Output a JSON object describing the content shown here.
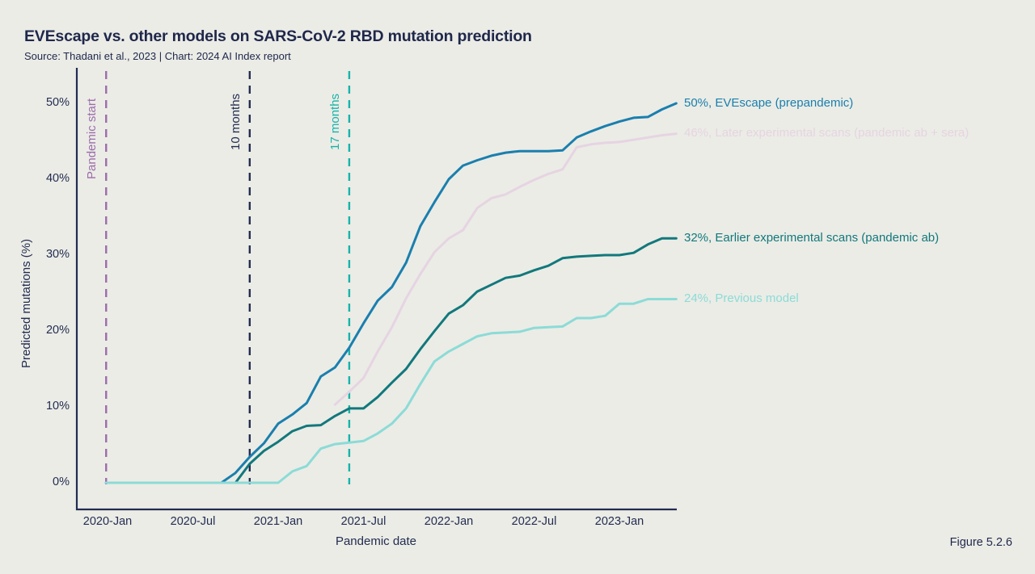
{
  "header": {
    "title": "EVEscape vs. other models on SARS-CoV-2 RBD mutation prediction",
    "subtitle": "Source: Thadani et al., 2023 | Chart: 2024 AI Index report"
  },
  "figure_label": "Figure 5.2.6",
  "chart_data": {
    "type": "line",
    "title": "EVEscape vs. other models on SARS-CoV-2 RBD mutation prediction",
    "xlabel": "Pandemic date",
    "ylabel": "Predicted mutations (%)",
    "x_unit": "months since 2020-Jan",
    "ylim": [
      0,
      50
    ],
    "grid": false,
    "legend_position": "line-end-labels-right",
    "axis_color": "#232c51",
    "background_color": "#ebece6",
    "y_ticks": [
      {
        "v": 0,
        "label": "0%"
      },
      {
        "v": 10,
        "label": "10%"
      },
      {
        "v": 20,
        "label": "20%"
      },
      {
        "v": 30,
        "label": "30%"
      },
      {
        "v": 40,
        "label": "40%"
      },
      {
        "v": 50,
        "label": "50%"
      }
    ],
    "x_ticks": [
      {
        "m": 0,
        "label": "2020-Jan"
      },
      {
        "m": 6,
        "label": "2020-Jul"
      },
      {
        "m": 12,
        "label": "2021-Jan"
      },
      {
        "m": 18,
        "label": "2021-Jul"
      },
      {
        "m": 24,
        "label": "2022-Jan"
      },
      {
        "m": 30,
        "label": "2022-Jul"
      },
      {
        "m": 36,
        "label": "2023-Jan"
      }
    ],
    "markers": [
      {
        "id": "pandemic-start",
        "label": "Pandemic start",
        "m": -0.1,
        "color": "#9c6cab",
        "label_height": 124
      },
      {
        "id": "10-months",
        "label": "10 months",
        "m": 10,
        "color": "#232c51",
        "label_height": 88
      },
      {
        "id": "17-months",
        "label": "17 months",
        "m": 17,
        "color": "#16b3aa",
        "label_height": 88
      }
    ],
    "series": [
      {
        "id": "evescape-prepandemic",
        "name": "EVEscape (prepandemic)",
        "end_label": "50%, EVEscape (prepandemic)",
        "color": "#1a7fae",
        "points": [
          [
            -0.1,
            0
          ],
          [
            8,
            0
          ],
          [
            9,
            1.3
          ],
          [
            10,
            3.4
          ],
          [
            11,
            5.2
          ],
          [
            12,
            7.8
          ],
          [
            13,
            9
          ],
          [
            14,
            10.5
          ],
          [
            15,
            14
          ],
          [
            16,
            15.2
          ],
          [
            17,
            17.8
          ],
          [
            18,
            21
          ],
          [
            19,
            24
          ],
          [
            20,
            25.8
          ],
          [
            21,
            29
          ],
          [
            22,
            33.8
          ],
          [
            23,
            37
          ],
          [
            24,
            40
          ],
          [
            25,
            41.8
          ],
          [
            26,
            42.5
          ],
          [
            27,
            43.1
          ],
          [
            28,
            43.5
          ],
          [
            29,
            43.7
          ],
          [
            31,
            43.7
          ],
          [
            32,
            43.8
          ],
          [
            33,
            45.5
          ],
          [
            34,
            46.3
          ],
          [
            35,
            47
          ],
          [
            36,
            47.6
          ],
          [
            37,
            48.1
          ],
          [
            38,
            48.2
          ],
          [
            39,
            49.2
          ],
          [
            40,
            50
          ]
        ]
      },
      {
        "id": "later-experimental-scans",
        "name": "Later experimental scans (pandemic ab + sera)",
        "end_label": "46%, Later experimental scans (pandemic ab + sera)",
        "color": "#e6d4e2",
        "points": [
          [
            16,
            10.3
          ],
          [
            17,
            12
          ],
          [
            18,
            13.8
          ],
          [
            19,
            17.3
          ],
          [
            20,
            20.5
          ],
          [
            21,
            24.3
          ],
          [
            22,
            27.5
          ],
          [
            23,
            30.4
          ],
          [
            24,
            32.2
          ],
          [
            25,
            33.3
          ],
          [
            26,
            36.2
          ],
          [
            27,
            37.5
          ],
          [
            28,
            38
          ],
          [
            29,
            39
          ],
          [
            30,
            39.9
          ],
          [
            31,
            40.7
          ],
          [
            32,
            41.3
          ],
          [
            33,
            44.2
          ],
          [
            34,
            44.6
          ],
          [
            35,
            44.8
          ],
          [
            36,
            44.9
          ],
          [
            37,
            45.2
          ],
          [
            38,
            45.5
          ],
          [
            39,
            45.8
          ],
          [
            40,
            46
          ]
        ]
      },
      {
        "id": "earlier-experimental-scans",
        "name": "Earlier experimental scans (pandemic ab)",
        "end_label": "32%, Earlier experimental scans (pandemic ab)",
        "color": "#12787c",
        "points": [
          [
            9,
            0
          ],
          [
            10,
            2.5
          ],
          [
            11,
            4.2
          ],
          [
            12,
            5.4
          ],
          [
            13,
            6.8
          ],
          [
            14,
            7.5
          ],
          [
            15,
            7.6
          ],
          [
            16,
            8.8
          ],
          [
            17,
            9.8
          ],
          [
            18,
            9.8
          ],
          [
            19,
            11.3
          ],
          [
            20,
            13.2
          ],
          [
            21,
            15
          ],
          [
            22,
            17.6
          ],
          [
            23,
            20
          ],
          [
            24,
            22.3
          ],
          [
            25,
            23.4
          ],
          [
            26,
            25.2
          ],
          [
            27,
            26.1
          ],
          [
            28,
            27
          ],
          [
            29,
            27.3
          ],
          [
            30,
            28
          ],
          [
            31,
            28.6
          ],
          [
            32,
            29.6
          ],
          [
            33,
            29.8
          ],
          [
            34,
            29.9
          ],
          [
            35,
            30
          ],
          [
            36,
            30
          ],
          [
            37,
            30.3
          ],
          [
            38,
            31.4
          ],
          [
            39,
            32.2
          ],
          [
            40,
            32.2
          ]
        ]
      },
      {
        "id": "previous-model",
        "name": "Previous model",
        "end_label": "24%, Previous model",
        "color": "#8cdbd7",
        "points": [
          [
            -0.1,
            0
          ],
          [
            12,
            0
          ],
          [
            13,
            1.5
          ],
          [
            14,
            2.2
          ],
          [
            15,
            4.5
          ],
          [
            16,
            5.1
          ],
          [
            17,
            5.3
          ],
          [
            18,
            5.5
          ],
          [
            19,
            6.5
          ],
          [
            20,
            7.8
          ],
          [
            21,
            9.8
          ],
          [
            22,
            13
          ],
          [
            23,
            16
          ],
          [
            24,
            17.3
          ],
          [
            25,
            18.3
          ],
          [
            26,
            19.3
          ],
          [
            27,
            19.7
          ],
          [
            28,
            19.8
          ],
          [
            29,
            19.9
          ],
          [
            30,
            20.4
          ],
          [
            31,
            20.5
          ],
          [
            32,
            20.6
          ],
          [
            33,
            21.7
          ],
          [
            34,
            21.7
          ],
          [
            35,
            22
          ],
          [
            36,
            23.6
          ],
          [
            37,
            23.6
          ],
          [
            38,
            24.2
          ],
          [
            39,
            24.2
          ],
          [
            40,
            24.2
          ]
        ]
      }
    ]
  }
}
